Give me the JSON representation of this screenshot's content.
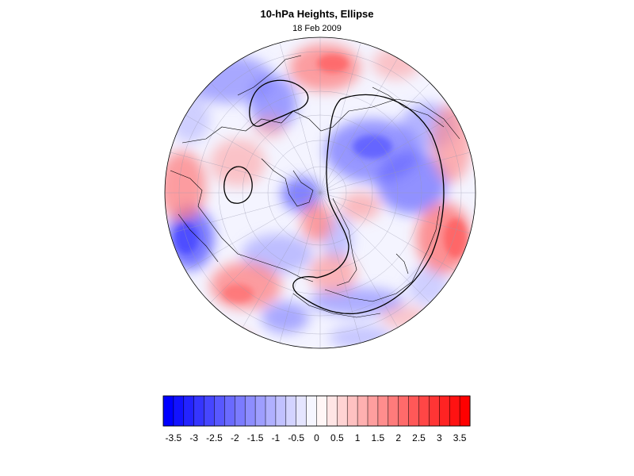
{
  "title": "10-hPa Heights, Ellipse",
  "subtitle": "18 Feb 2009",
  "colorbar": {
    "min": -3.75,
    "max": 3.75,
    "step": 0.25,
    "tick_labels": [
      "-3.5",
      "-3",
      "-2.5",
      "-2",
      "-1.5",
      "-1",
      "-0.5",
      "0",
      "0.5",
      "1",
      "1.5",
      "2",
      "2.5",
      "3",
      "3.5"
    ],
    "tick_values": [
      -3.5,
      -3,
      -2.5,
      -2,
      -1.5,
      -1,
      -0.5,
      0,
      0.5,
      1,
      1.5,
      2,
      2.5,
      3,
      3.5
    ],
    "negative_color": "#0000ff",
    "zero_color": "#ffffff",
    "positive_color": "#ff0000"
  },
  "map": {
    "projection": "orthographic-polar",
    "hemisphere": "northern",
    "background_color": "#ffffff"
  }
}
